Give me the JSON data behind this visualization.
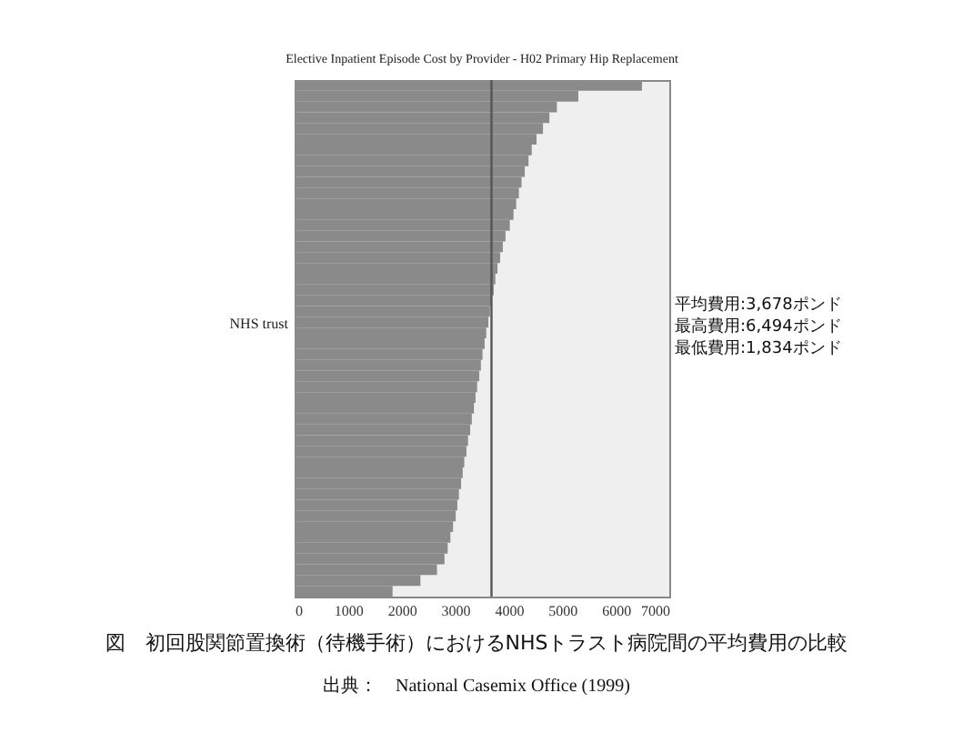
{
  "chart_data": {
    "type": "bar",
    "orientation": "horizontal",
    "title": "Elective Inpatient Episode Cost by Provider - H02 Primary Hip Replacement",
    "ylabel": "NHS trust",
    "categories": [
      null,
      null,
      null,
      null,
      null,
      null,
      null,
      null,
      null,
      null,
      null,
      null,
      null,
      null,
      null,
      null,
      null,
      null,
      null,
      null,
      null,
      null,
      null,
      null,
      null,
      null,
      null,
      null,
      null,
      null,
      null,
      null,
      null,
      null,
      null,
      null,
      null,
      null,
      null,
      null,
      null,
      null,
      null,
      null,
      null,
      null,
      null,
      null
    ],
    "values": [
      6490,
      5300,
      4900,
      4760,
      4640,
      4520,
      4430,
      4370,
      4300,
      4240,
      4190,
      4140,
      4090,
      4020,
      3940,
      3890,
      3840,
      3790,
      3750,
      3720,
      3680,
      3650,
      3620,
      3580,
      3550,
      3510,
      3480,
      3450,
      3410,
      3380,
      3350,
      3310,
      3280,
      3240,
      3210,
      3170,
      3140,
      3110,
      3070,
      3040,
      3010,
      2960,
      2910,
      2860,
      2800,
      2660,
      2350,
      1830
    ],
    "color": "#8a8a8a",
    "xlim": [
      0,
      7000
    ],
    "xticks": [
      0,
      1000,
      2000,
      3000,
      4000,
      5000,
      6000,
      7000
    ],
    "tick_labels": "x",
    "grid": false,
    "ref_lines": [
      {
        "axis": "x",
        "value": 3678,
        "color": "#555555"
      }
    ],
    "annotations": [
      "平均費用:3,678ポンド",
      "最高費用:6,494ポンド",
      "最低費用:1,834ポンド",
      "図　初回股関節置換術（待機手術）におけるNHSトラスト病院間の平均費用の比較",
      "出典：　National Casemix Office (1999)"
    ]
  }
}
